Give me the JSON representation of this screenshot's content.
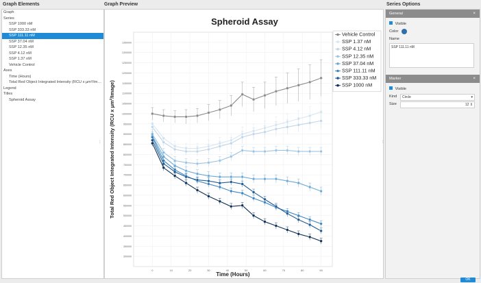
{
  "panels": {
    "left_title": "Graph Elements",
    "center_title": "Graph Preview",
    "right_title": "Series Options"
  },
  "tree": [
    {
      "label": "Graph",
      "level": 0
    },
    {
      "label": "Series",
      "level": 0
    },
    {
      "label": "SSP 1000 nM",
      "level": 1
    },
    {
      "label": "SSP 333.33 nM",
      "level": 1
    },
    {
      "label": "SSP 111.11 nM",
      "level": 1,
      "selected": true
    },
    {
      "label": "SSP 37.04 nM",
      "level": 1
    },
    {
      "label": "SSP 12.35 nM",
      "level": 1
    },
    {
      "label": "SSP 4.12 nM",
      "level": 1
    },
    {
      "label": "SSP 1.37 nM",
      "level": 1
    },
    {
      "label": "Vehicle Control",
      "level": 1
    },
    {
      "label": "Axes",
      "level": 0
    },
    {
      "label": "Time (Hours)",
      "level": 1
    },
    {
      "label": "Total Red Object Integrated Intensity (RCU x µm²/Image)",
      "level": 1
    },
    {
      "label": "Legend",
      "level": 0
    },
    {
      "label": "Titles",
      "level": 0
    },
    {
      "label": "Spheroid Assay",
      "level": 1
    }
  ],
  "options": {
    "general_header": "General",
    "visible_label": "Visible",
    "color_label": "Color",
    "name_label": "Name",
    "name_value": "SSP 111.11 nM",
    "marker_header": "Marker",
    "marker_visible_label": "Visible",
    "kind_label": "Kind",
    "kind_value": "Circle",
    "size_label": "Size",
    "size_value": "12",
    "close_glyph": "×",
    "ok_label": "OK"
  },
  "colors": {
    "accent": "#1f8ad6",
    "selected_series_color": "#2f6fae"
  },
  "chart_data": {
    "type": "line",
    "title": "Spheroid Assay",
    "xlabel": "Time (Hours)",
    "ylabel": "Total Red Object Integrated Intensity (RCU x µm²/Image)",
    "xlim": [
      -10,
      96
    ],
    "ylim": [
      250000,
      1400000
    ],
    "xticks": [
      0,
      10,
      20,
      30,
      40,
      50,
      60,
      70,
      80,
      90
    ],
    "yticks": [
      300000,
      350000,
      400000,
      450000,
      500000,
      550000,
      600000,
      650000,
      700000,
      750000,
      800000,
      850000,
      900000,
      950000,
      1000000,
      1050000,
      1100000,
      1150000,
      1200000,
      1250000,
      1300000,
      1350000
    ],
    "legend_position": "top-right",
    "x": [
      0,
      6,
      12,
      18,
      24,
      30,
      36,
      42,
      48,
      54,
      60,
      66,
      72,
      78,
      84,
      90
    ],
    "series": [
      {
        "name": "Vehicle Control",
        "color": "#8a8a8a",
        "values": [
          1000000,
          990000,
          985000,
          985000,
          990000,
          1005000,
          1020000,
          1040000,
          1095000,
          1070000,
          1090000,
          1110000,
          1125000,
          1140000,
          1155000,
          1175000
        ],
        "err": [
          30000,
          30000,
          30000,
          35000,
          35000,
          40000,
          45000,
          50000,
          60000,
          60000,
          65000,
          70000,
          75000,
          80000,
          85000,
          90000
        ]
      },
      {
        "name": "SSP 1.37 nM",
        "color": "#d9e6f1",
        "values": [
          950000,
          880000,
          840000,
          830000,
          830000,
          840000,
          855000,
          870000,
          900000,
          915000,
          930000,
          945000,
          960000,
          975000,
          990000,
          1010000
        ],
        "err": [
          20000,
          20000,
          25000,
          25000,
          25000,
          30000,
          30000,
          30000,
          35000,
          35000,
          35000,
          40000,
          40000,
          40000,
          45000,
          45000
        ]
      },
      {
        "name": "SSP 4.12 nM",
        "color": "#bfd6ea",
        "values": [
          935000,
          860000,
          825000,
          815000,
          815000,
          825000,
          840000,
          855000,
          885000,
          900000,
          910000,
          925000,
          935000,
          945000,
          955000,
          965000
        ],
        "err": [
          20000,
          20000,
          20000,
          20000,
          25000,
          25000,
          25000,
          30000,
          30000,
          30000,
          30000,
          35000,
          35000,
          35000,
          35000,
          40000
        ]
      },
      {
        "name": "SSP 12.35 nM",
        "color": "#9cc3e2",
        "values": [
          900000,
          810000,
          770000,
          760000,
          755000,
          760000,
          770000,
          790000,
          820000,
          815000,
          815000,
          820000,
          820000,
          815000,
          815000,
          815000
        ],
        "err": [
          20000,
          20000,
          20000,
          20000,
          20000,
          20000,
          20000,
          20000,
          20000,
          20000,
          20000,
          20000,
          20000,
          20000,
          20000,
          20000
        ]
      },
      {
        "name": "SSP 37.04 nM",
        "color": "#6aa8d6",
        "values": [
          890000,
          790000,
          745000,
          720000,
          705000,
          695000,
          690000,
          690000,
          690000,
          680000,
          680000,
          680000,
          670000,
          660000,
          640000,
          620000
        ],
        "err": [
          20000,
          20000,
          20000,
          20000,
          20000,
          20000,
          20000,
          20000,
          20000,
          20000,
          20000,
          20000,
          20000,
          20000,
          20000,
          20000
        ]
      },
      {
        "name": "SSP 111.11 nM",
        "color": "#3d86c2",
        "values": [
          885000,
          770000,
          725000,
          695000,
          670000,
          655000,
          640000,
          620000,
          610000,
          585000,
          565000,
          540000,
          520000,
          500000,
          480000,
          460000
        ],
        "err": [
          15000,
          15000,
          15000,
          15000,
          15000,
          15000,
          15000,
          15000,
          15000,
          15000,
          15000,
          15000,
          15000,
          15000,
          15000,
          15000
        ]
      },
      {
        "name": "SSP 333.33 nM",
        "color": "#1f5b93",
        "values": [
          870000,
          755000,
          715000,
          690000,
          675000,
          670000,
          660000,
          665000,
          655000,
          615000,
          580000,
          545000,
          510000,
          480000,
          455000,
          425000
        ],
        "err": [
          15000,
          15000,
          15000,
          15000,
          15000,
          15000,
          15000,
          15000,
          15000,
          15000,
          15000,
          15000,
          15000,
          15000,
          15000,
          15000
        ]
      },
      {
        "name": "SSP 1000 nM",
        "color": "#0d2f55",
        "values": [
          855000,
          735000,
          695000,
          660000,
          625000,
          595000,
          570000,
          545000,
          550000,
          500000,
          470000,
          450000,
          430000,
          410000,
          395000,
          375000
        ],
        "err": [
          15000,
          15000,
          15000,
          15000,
          15000,
          15000,
          15000,
          15000,
          15000,
          15000,
          15000,
          15000,
          15000,
          15000,
          15000,
          15000
        ]
      }
    ]
  }
}
